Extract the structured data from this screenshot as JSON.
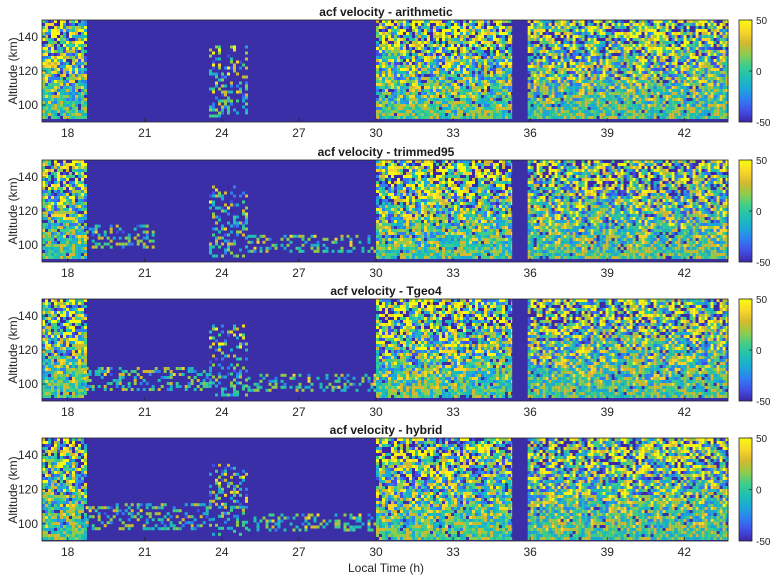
{
  "colors": {
    "background_fill": "#3a2fa6",
    "colormap": [
      "#3e26a8",
      "#4150e6",
      "#2f7ff2",
      "#1ca9d8",
      "#1fc0b4",
      "#3fce8a",
      "#90cc4b",
      "#d4b930",
      "#f9d72a",
      "#f9fb0e"
    ]
  },
  "chart_data": [
    {
      "type": "heatmap",
      "title": "acf velocity - arithmetic",
      "xlabel": "",
      "ylabel": "Altitude (km)",
      "xlim": [
        17,
        43.7
      ],
      "ylim": [
        90,
        150
      ],
      "xticks": [
        "18",
        "21",
        "24",
        "27",
        "30",
        "33",
        "36",
        "39",
        "42"
      ],
      "yticks": [
        "100",
        "120",
        "140"
      ],
      "colorbar": {
        "range": [
          -50,
          50
        ],
        "ticks": [
          "50",
          "0",
          "-50"
        ]
      },
      "data_gap": [
        35.3,
        35.9
      ],
      "regions": [
        {
          "x": [
            17.0,
            18.7
          ],
          "y": [
            92,
            150
          ],
          "mean": 5
        },
        {
          "x": [
            23.5,
            25.0
          ],
          "y": [
            94,
            135
          ],
          "mean": 0,
          "sparse": true
        },
        {
          "x": [
            30.0,
            35.3
          ],
          "y": [
            92,
            150
          ],
          "mean": 5
        },
        {
          "x": [
            35.9,
            43.7
          ],
          "y": [
            92,
            150
          ],
          "mean": 5
        }
      ]
    },
    {
      "type": "heatmap",
      "title": "acf velocity - trimmed95",
      "xlabel": "",
      "ylabel": "Altitude (km)",
      "xlim": [
        17,
        43.7
      ],
      "ylim": [
        90,
        150
      ],
      "xticks": [
        "18",
        "21",
        "24",
        "27",
        "30",
        "33",
        "36",
        "39",
        "42"
      ],
      "yticks": [
        "100",
        "120",
        "140"
      ],
      "colorbar": {
        "range": [
          -50,
          50
        ],
        "ticks": [
          "50",
          "0",
          "-50"
        ]
      },
      "data_gap": [
        35.3,
        35.9
      ],
      "regions": [
        {
          "x": [
            17.0,
            18.7
          ],
          "y": [
            92,
            150
          ],
          "mean": 5
        },
        {
          "x": [
            18.7,
            21.3
          ],
          "y": [
            98,
            112
          ],
          "mean": 0,
          "sparse": true
        },
        {
          "x": [
            23.5,
            25.0
          ],
          "y": [
            94,
            135
          ],
          "mean": 0,
          "sparse": true
        },
        {
          "x": [
            25.0,
            30.0
          ],
          "y": [
            97,
            106
          ],
          "mean": 5,
          "sparse": true
        },
        {
          "x": [
            30.0,
            35.3
          ],
          "y": [
            92,
            150
          ],
          "mean": 5
        },
        {
          "x": [
            35.9,
            43.7
          ],
          "y": [
            92,
            150
          ],
          "mean": 5
        }
      ]
    },
    {
      "type": "heatmap",
      "title": "acf velocity - Tgeo4",
      "xlabel": "",
      "ylabel": "Altitude (km)",
      "xlim": [
        17,
        43.7
      ],
      "ylim": [
        90,
        150
      ],
      "xticks": [
        "18",
        "21",
        "24",
        "27",
        "30",
        "33",
        "36",
        "39",
        "42"
      ],
      "yticks": [
        "100",
        "120",
        "140"
      ],
      "colorbar": {
        "range": [
          -50,
          50
        ],
        "ticks": [
          "50",
          "0",
          "-50"
        ]
      },
      "data_gap": [
        35.3,
        35.9
      ],
      "regions": [
        {
          "x": [
            17.0,
            18.7
          ],
          "y": [
            92,
            150
          ],
          "mean": 5
        },
        {
          "x": [
            18.7,
            23.5
          ],
          "y": [
            97,
            110
          ],
          "mean": 0,
          "sparse": true
        },
        {
          "x": [
            23.5,
            25.0
          ],
          "y": [
            94,
            135
          ],
          "mean": 0,
          "sparse": true
        },
        {
          "x": [
            25.0,
            30.0
          ],
          "y": [
            96,
            106
          ],
          "mean": 5,
          "sparse": true
        },
        {
          "x": [
            30.0,
            35.3
          ],
          "y": [
            92,
            150
          ],
          "mean": 5
        },
        {
          "x": [
            35.9,
            43.7
          ],
          "y": [
            92,
            150
          ],
          "mean": 5
        }
      ]
    },
    {
      "type": "heatmap",
      "title": "acf velocity - hybrid",
      "xlabel": "Local Time (h)",
      "ylabel": "Altitude (km)",
      "xlim": [
        17,
        43.7
      ],
      "ylim": [
        90,
        150
      ],
      "xticks": [
        "18",
        "21",
        "24",
        "27",
        "30",
        "33",
        "36",
        "39",
        "42"
      ],
      "yticks": [
        "100",
        "120",
        "140"
      ],
      "colorbar": {
        "range": [
          -50,
          50
        ],
        "ticks": [
          "50",
          "0",
          "-50"
        ]
      },
      "data_gap": [
        35.3,
        35.9
      ],
      "regions": [
        {
          "x": [
            17.0,
            18.7
          ],
          "y": [
            92,
            150
          ],
          "mean": 5
        },
        {
          "x": [
            18.7,
            23.5
          ],
          "y": [
            97,
            112
          ],
          "mean": 0,
          "sparse": true
        },
        {
          "x": [
            23.5,
            25.0
          ],
          "y": [
            94,
            135
          ],
          "mean": 0,
          "sparse": true
        },
        {
          "x": [
            25.0,
            30.0
          ],
          "y": [
            96,
            106
          ],
          "mean": 5,
          "sparse": true
        },
        {
          "x": [
            30.0,
            35.3
          ],
          "y": [
            92,
            150
          ],
          "mean": 5
        },
        {
          "x": [
            35.9,
            43.7
          ],
          "y": [
            92,
            150
          ],
          "mean": 5
        }
      ]
    }
  ]
}
